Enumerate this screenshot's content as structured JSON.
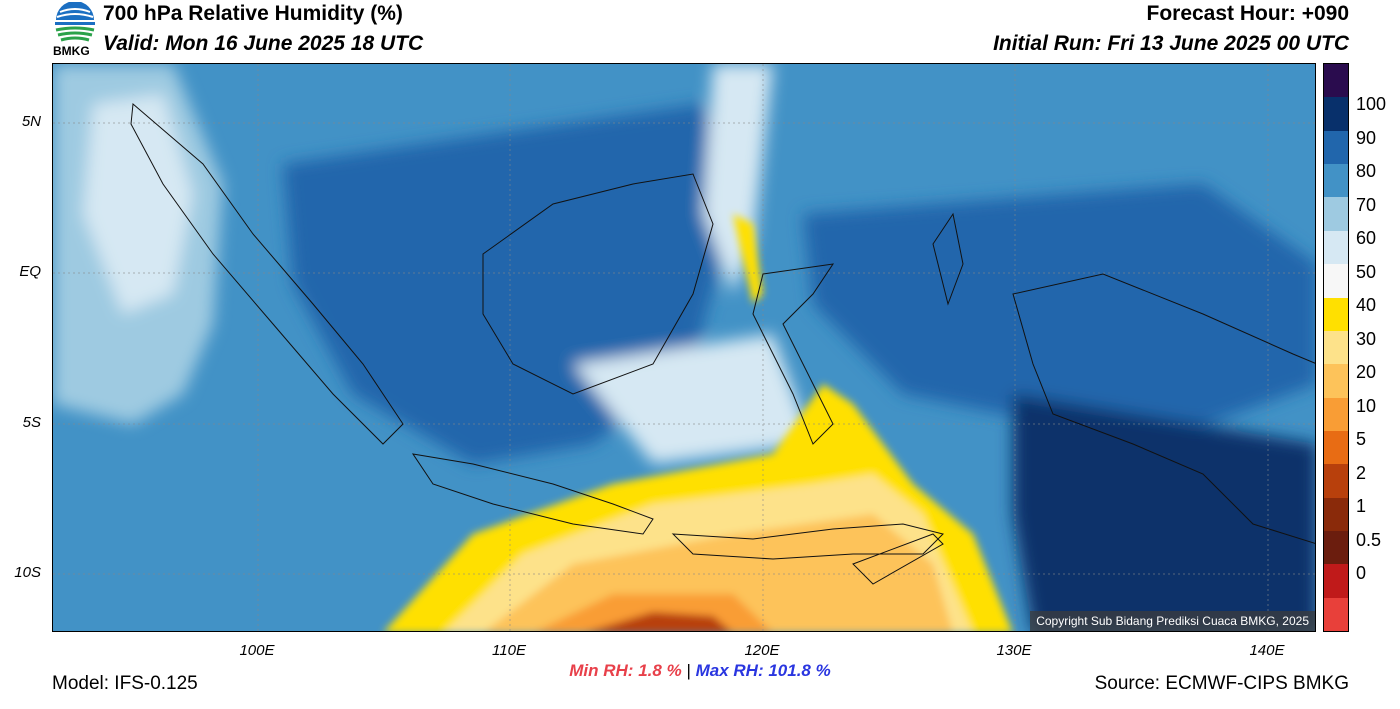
{
  "header": {
    "title": "700 hPa Relative Humidity (%)",
    "valid": "Valid: Mon 16 June 2025 18 UTC",
    "forecast_hour": "Forecast Hour: +090",
    "initial_run": "Initial Run: Fri 13 June 2025 00 UTC"
  },
  "logo": {
    "text": "BMKG",
    "icon": "bmkg-logo-icon"
  },
  "axes": {
    "lat_labels": [
      "5N",
      "EQ",
      "5S",
      "10S"
    ],
    "lon_labels": [
      "100E",
      "110E",
      "120E",
      "130E",
      "140E"
    ]
  },
  "colorbar": {
    "labels": [
      "100",
      "90",
      "80",
      "70",
      "60",
      "50",
      "40",
      "30",
      "20",
      "10",
      "5",
      "2",
      "1",
      "0.5",
      "0"
    ],
    "colors": [
      "#2a0c4e",
      "#08306b",
      "#2166ac",
      "#4292c6",
      "#9ecae1",
      "#d6e8f3",
      "#f7f7f7",
      "#ffe000",
      "#fde28a",
      "#fdc35a",
      "#f99d35",
      "#e86c14",
      "#b8400c",
      "#8a2a0a",
      "#6b1d0e",
      "#c01a1a",
      "#e8403a"
    ]
  },
  "stats": {
    "min_label": "Min RH:",
    "min_value": "1.8 %",
    "sep": "|",
    "max_label": "Max RH:",
    "max_value": "101.8 %"
  },
  "footer": {
    "model": "Model: IFS-0.125",
    "source": "Source: ECMWF-CIPS BMKG"
  },
  "copyright": "Copyright Sub Bidang Prediksi Cuaca BMKG, 2025"
}
